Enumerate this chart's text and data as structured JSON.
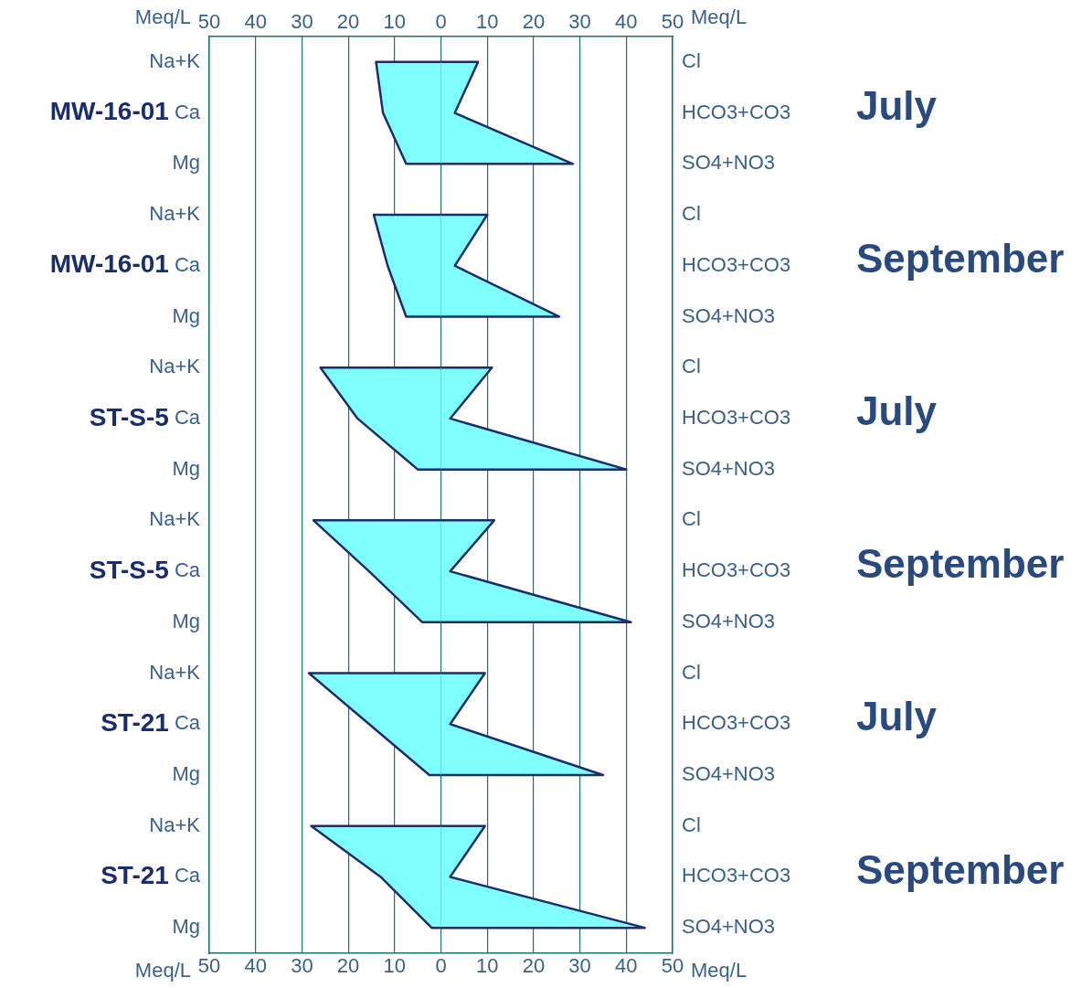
{
  "chart_data": {
    "type": "area",
    "orientation": "horizontal",
    "xlabel": "Meq/L",
    "categories": [
      "Na+K",
      "Ca",
      "Mg",
      "Na+K",
      "Ca",
      "Mg",
      "Na+K",
      "Ca",
      "Mg",
      "Na+K",
      "Ca",
      "Mg",
      "Na+K",
      "Ca",
      "Mg",
      "Na+K",
      "Ca",
      "Mg"
    ],
    "y2_categories": [
      "Cl",
      "HCO3+CO3",
      "SO4+NO3",
      "Cl",
      "HCO3+CO3",
      "SO4+NO3",
      "Cl",
      "HCO3+CO3",
      "SO4+NO3",
      "Cl",
      "HCO3+CO3",
      "SO4+NO3",
      "Cl",
      "HCO3+CO3",
      "SO4+NO3",
      "Cl",
      "HCO3+CO3",
      "SO4+NO3"
    ],
    "xlim": [
      -50,
      50
    ],
    "xticks": [
      {
        "value": -50,
        "label": "50"
      },
      {
        "value": -40,
        "label": "40"
      },
      {
        "value": -30,
        "label": "30"
      },
      {
        "value": -20,
        "label": "20"
      },
      {
        "value": -10,
        "label": "10"
      },
      0,
      10,
      20,
      30,
      40,
      50
    ],
    "x2lim": [
      -50,
      50
    ],
    "x2ticks": [
      {
        "value": -50,
        "label": "50"
      },
      {
        "value": -40,
        "label": "40"
      },
      {
        "value": -30,
        "label": "30"
      },
      {
        "value": -20,
        "label": "20"
      },
      {
        "value": -10,
        "label": "10"
      },
      0,
      10,
      20,
      30,
      40,
      50
    ],
    "grid": "x",
    "series": [
      {
        "color": "#80ffff",
        "values": [
          -14,
          -12.5,
          -7.5,
          null,
          null,
          null,
          null,
          null,
          null,
          null,
          null,
          null,
          null,
          null,
          null,
          null,
          null,
          null
        ]
      },
      {
        "color": "#80ffff",
        "values": [
          8,
          3,
          28.5,
          null,
          null,
          null,
          null,
          null,
          null,
          null,
          null,
          null,
          null,
          null,
          null,
          null,
          null,
          null
        ]
      },
      {
        "color": "#80ffff",
        "values": [
          null,
          null,
          null,
          -14.5,
          -11.5,
          -7.5,
          null,
          null,
          null,
          null,
          null,
          null,
          null,
          null,
          null,
          null,
          null,
          null
        ]
      },
      {
        "color": "#80ffff",
        "values": [
          null,
          null,
          null,
          10,
          3,
          25.5,
          null,
          null,
          null,
          null,
          null,
          null,
          null,
          null,
          null,
          null,
          null,
          null
        ]
      },
      {
        "color": "#80ffff",
        "values": [
          null,
          null,
          null,
          null,
          null,
          null,
          -26,
          -18,
          -5,
          null,
          null,
          null,
          null,
          null,
          null,
          null,
          null,
          null
        ]
      },
      {
        "color": "#80ffff",
        "values": [
          null,
          null,
          null,
          null,
          null,
          null,
          11,
          2,
          40,
          null,
          null,
          null,
          null,
          null,
          null,
          null,
          null,
          null
        ]
      },
      {
        "color": "#80ffff",
        "values": [
          null,
          null,
          null,
          null,
          null,
          null,
          null,
          null,
          null,
          -27.5,
          -15.5,
          -4,
          null,
          null,
          null,
          null,
          null,
          null
        ]
      },
      {
        "color": "#80ffff",
        "values": [
          null,
          null,
          null,
          null,
          null,
          null,
          null,
          null,
          null,
          11.5,
          2,
          41,
          null,
          null,
          null,
          null,
          null,
          null
        ]
      },
      {
        "color": "#80ffff",
        "values": [
          null,
          null,
          null,
          null,
          null,
          null,
          null,
          null,
          null,
          null,
          null,
          null,
          -28.5,
          -15.5,
          -2.5,
          null,
          null,
          null
        ]
      },
      {
        "color": "#80ffff",
        "values": [
          null,
          null,
          null,
          null,
          null,
          null,
          null,
          null,
          null,
          null,
          null,
          null,
          9.5,
          2,
          35,
          null,
          null,
          null
        ]
      },
      {
        "color": "#80ffff",
        "values": [
          null,
          null,
          null,
          null,
          null,
          null,
          null,
          null,
          null,
          null,
          null,
          null,
          null,
          null,
          null,
          -28,
          -13,
          -2
        ]
      },
      {
        "color": "#80ffff",
        "values": [
          null,
          null,
          null,
          null,
          null,
          null,
          null,
          null,
          null,
          null,
          null,
          null,
          null,
          null,
          null,
          9.5,
          2,
          44
        ]
      }
    ],
    "annotations": [
      "MW-16-01",
      "July",
      "MW-16-01",
      "September",
      "ST-S-5",
      "July",
      "ST-S-5",
      "September",
      "ST-21",
      "July",
      "ST-21",
      "September"
    ]
  }
}
